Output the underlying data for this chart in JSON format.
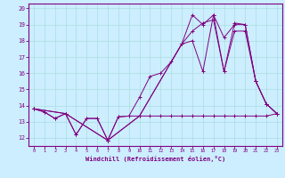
{
  "xlabel": "Windchill (Refroidissement éolien,°C)",
  "background_color": "#cceeff",
  "line_color": "#800080",
  "grid_color": "#aadddd",
  "xlim": [
    -0.5,
    23.5
  ],
  "ylim": [
    11.5,
    20.3
  ],
  "xticks": [
    0,
    1,
    2,
    3,
    4,
    5,
    6,
    7,
    8,
    9,
    10,
    11,
    12,
    13,
    14,
    15,
    16,
    17,
    18,
    19,
    20,
    21,
    22,
    23
  ],
  "yticks": [
    12,
    13,
    14,
    15,
    16,
    17,
    18,
    19,
    20
  ],
  "series1_x": [
    0,
    1,
    2,
    3,
    4,
    5,
    6,
    7,
    8,
    9,
    10,
    11,
    12,
    13,
    14,
    15,
    16,
    17,
    18,
    19,
    20,
    21,
    22,
    23
  ],
  "series1_y": [
    13.8,
    13.6,
    13.2,
    13.5,
    12.2,
    13.2,
    13.2,
    11.85,
    13.3,
    13.35,
    13.35,
    13.35,
    13.35,
    13.35,
    13.35,
    13.35,
    13.35,
    13.35,
    13.35,
    13.35,
    13.35,
    13.35,
    13.35,
    13.5
  ],
  "series2_x": [
    0,
    1,
    2,
    3,
    4,
    5,
    6,
    7,
    8,
    9,
    10,
    11,
    12,
    13,
    14,
    15,
    16,
    17,
    18,
    19,
    20,
    21,
    22,
    23
  ],
  "series2_y": [
    13.8,
    13.6,
    13.2,
    13.5,
    12.2,
    13.2,
    13.2,
    11.85,
    13.3,
    13.35,
    14.5,
    15.8,
    16.0,
    16.7,
    17.8,
    18.6,
    19.1,
    19.3,
    16.1,
    18.6,
    18.6,
    15.5,
    14.1,
    13.5
  ],
  "series3_x": [
    0,
    3,
    7,
    10,
    14,
    15,
    16,
    17,
    18,
    19,
    20,
    21,
    22,
    23
  ],
  "series3_y": [
    13.8,
    13.5,
    11.85,
    13.35,
    17.8,
    19.6,
    19.0,
    19.6,
    16.1,
    19.1,
    19.0,
    15.5,
    14.1,
    13.5
  ],
  "series4_x": [
    0,
    3,
    7,
    10,
    14,
    15,
    16,
    17,
    18,
    19,
    20,
    21,
    22,
    23
  ],
  "series4_y": [
    13.8,
    13.5,
    11.85,
    13.35,
    17.8,
    18.0,
    16.1,
    19.6,
    18.2,
    19.0,
    19.0,
    15.5,
    14.1,
    13.5
  ]
}
